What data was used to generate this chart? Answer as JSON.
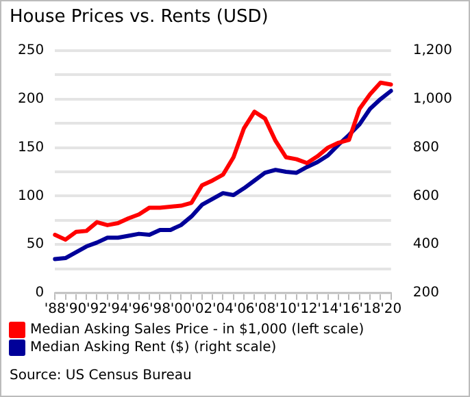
{
  "chart_data": {
    "type": "line",
    "title": "House Prices vs. Rents (USD)",
    "categories": [
      "'88",
      null,
      "'90",
      null,
      "'92",
      null,
      "'94",
      null,
      "'96",
      null,
      "'98",
      null,
      "'00",
      null,
      "'02",
      null,
      "'04",
      null,
      "'06",
      null,
      "'08",
      null,
      "'10",
      null,
      "'12",
      null,
      "'14",
      null,
      "'16",
      null,
      "'18",
      null,
      "'20"
    ],
    "series": [
      {
        "name": "Median Asking Sales Price - in $1,000 (left scale)",
        "color": "#ff0000",
        "values": [
          60,
          55,
          63,
          64,
          73,
          70,
          72,
          77,
          81,
          88,
          88,
          89,
          90,
          93,
          111,
          116,
          122,
          140,
          170,
          187,
          180,
          157,
          140,
          138,
          134,
          141,
          150,
          155,
          158,
          190,
          205,
          217,
          215
        ]
      },
      {
        "name": "Median Asking Rent ($) (right scale)",
        "color": "#000099",
        "axis": "y2",
        "values": [
          340,
          344,
          368,
          392,
          408,
          428,
          428,
          436,
          444,
          440,
          460,
          460,
          480,
          516,
          564,
          588,
          612,
          604,
          632,
          664,
          696,
          708,
          700,
          696,
          720,
          740,
          768,
          812,
          852,
          896,
          960,
          1000,
          1034
        ]
      }
    ],
    "ylim": [
      0,
      250
    ],
    "yticks": [
      0,
      {
        "value": 25,
        "label": null
      },
      50,
      {
        "value": 75,
        "label": null
      },
      100,
      {
        "value": 125,
        "label": null
      },
      150,
      {
        "value": 175,
        "label": null
      },
      200,
      {
        "value": 225,
        "label": null
      },
      250
    ],
    "y2lim": [
      200,
      1200
    ],
    "y2ticks": [
      {
        "value": 200,
        "label": "200"
      },
      {
        "value": 400,
        "label": "400"
      },
      {
        "value": 600,
        "label": "600"
      },
      {
        "value": 800,
        "label": "800"
      },
      {
        "value": 1000,
        "label": "1,000"
      },
      {
        "value": 1200,
        "label": "1,200"
      }
    ],
    "grid": "y",
    "legend": "bottom",
    "marker": "none",
    "line_style": "solid",
    "annotations": [
      "Source: US Census Bureau"
    ]
  }
}
